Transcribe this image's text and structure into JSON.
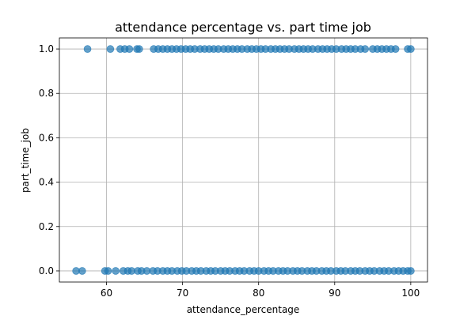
{
  "chart_data": {
    "type": "scatter",
    "title": "attendance percentage vs. part time job",
    "xlabel": "attendance_percentage",
    "ylabel": "part_time_job",
    "xlim": [
      53.8,
      102.2
    ],
    "ylim": [
      -0.05,
      1.05
    ],
    "xticks": [
      60,
      70,
      80,
      90,
      100
    ],
    "xtick_labels": [
      "60",
      "70",
      "80",
      "90",
      100
    ],
    "yticks": [
      0.0,
      0.2,
      0.4,
      0.6,
      0.8,
      1.0
    ],
    "ytick_labels": [
      "0.0",
      "0.2",
      "0.4",
      "0.6",
      "0.8",
      "1.0"
    ],
    "grid": true,
    "color": "#1f77b4",
    "series": [
      {
        "values": [
          [
            56,
            0
          ],
          [
            56.8,
            0
          ],
          [
            59.8,
            0
          ],
          [
            60.2,
            0
          ],
          [
            61.2,
            0
          ],
          [
            62.2,
            0
          ],
          [
            62.8,
            0
          ],
          [
            63.3,
            0
          ],
          [
            64.1,
            0
          ],
          [
            64.6,
            0
          ],
          [
            65.3,
            0
          ],
          [
            66.1,
            0
          ],
          [
            66.7,
            0
          ],
          [
            67.4,
            0
          ],
          [
            68.0,
            0
          ],
          [
            68.6,
            0
          ],
          [
            69.3,
            0
          ],
          [
            69.9,
            0
          ],
          [
            70.5,
            0
          ],
          [
            71.2,
            0
          ],
          [
            71.8,
            0
          ],
          [
            72.4,
            0
          ],
          [
            73.1,
            0
          ],
          [
            73.7,
            0
          ],
          [
            74.3,
            0
          ],
          [
            75.0,
            0
          ],
          [
            75.6,
            0
          ],
          [
            76.2,
            0
          ],
          [
            76.9,
            0
          ],
          [
            77.5,
            0
          ],
          [
            78.1,
            0
          ],
          [
            78.8,
            0
          ],
          [
            79.4,
            0
          ],
          [
            80.0,
            0
          ],
          [
            80.7,
            0
          ],
          [
            81.3,
            0
          ],
          [
            81.9,
            0
          ],
          [
            82.6,
            0
          ],
          [
            83.2,
            0
          ],
          [
            83.8,
            0
          ],
          [
            84.5,
            0
          ],
          [
            85.1,
            0
          ],
          [
            85.7,
            0
          ],
          [
            86.4,
            0
          ],
          [
            87.0,
            0
          ],
          [
            87.6,
            0
          ],
          [
            88.3,
            0
          ],
          [
            88.9,
            0
          ],
          [
            89.5,
            0
          ],
          [
            90.2,
            0
          ],
          [
            90.8,
            0
          ],
          [
            91.4,
            0
          ],
          [
            92.1,
            0
          ],
          [
            92.7,
            0
          ],
          [
            93.3,
            0
          ],
          [
            94.0,
            0
          ],
          [
            94.6,
            0
          ],
          [
            95.2,
            0
          ],
          [
            95.9,
            0
          ],
          [
            96.5,
            0
          ],
          [
            97.1,
            0
          ],
          [
            97.8,
            0
          ],
          [
            98.4,
            0
          ],
          [
            99.0,
            0
          ],
          [
            99.6,
            0
          ],
          [
            100,
            0
          ],
          [
            57.5,
            1
          ],
          [
            60.5,
            1
          ],
          [
            61.8,
            1
          ],
          [
            62.4,
            1
          ],
          [
            63.0,
            1
          ],
          [
            64.0,
            1
          ],
          [
            64.3,
            1
          ],
          [
            66.2,
            1
          ],
          [
            66.8,
            1
          ],
          [
            67.4,
            1
          ],
          [
            68.0,
            1
          ],
          [
            68.6,
            1
          ],
          [
            69.2,
            1
          ],
          [
            69.8,
            1
          ],
          [
            70.4,
            1
          ],
          [
            71.0,
            1
          ],
          [
            71.6,
            1
          ],
          [
            72.3,
            1
          ],
          [
            72.9,
            1
          ],
          [
            73.5,
            1
          ],
          [
            74.1,
            1
          ],
          [
            74.7,
            1
          ],
          [
            75.4,
            1
          ],
          [
            76.0,
            1
          ],
          [
            76.6,
            1
          ],
          [
            77.2,
            1
          ],
          [
            77.8,
            1
          ],
          [
            78.5,
            1
          ],
          [
            79.1,
            1
          ],
          [
            79.7,
            1
          ],
          [
            80.3,
            1
          ],
          [
            80.9,
            1
          ],
          [
            81.6,
            1
          ],
          [
            82.2,
            1
          ],
          [
            82.8,
            1
          ],
          [
            83.4,
            1
          ],
          [
            84.0,
            1
          ],
          [
            84.7,
            1
          ],
          [
            85.3,
            1
          ],
          [
            85.9,
            1
          ],
          [
            86.5,
            1
          ],
          [
            87.1,
            1
          ],
          [
            87.8,
            1
          ],
          [
            88.4,
            1
          ],
          [
            89.0,
            1
          ],
          [
            89.6,
            1
          ],
          [
            90.2,
            1
          ],
          [
            90.9,
            1
          ],
          [
            91.5,
            1
          ],
          [
            92.1,
            1
          ],
          [
            92.7,
            1
          ],
          [
            93.4,
            1
          ],
          [
            94.0,
            1
          ],
          [
            95.0,
            1
          ],
          [
            95.6,
            1
          ],
          [
            96.2,
            1
          ],
          [
            96.8,
            1
          ],
          [
            97.4,
            1
          ],
          [
            98.0,
            1
          ],
          [
            99.6,
            1
          ],
          [
            100,
            1
          ]
        ]
      }
    ]
  }
}
